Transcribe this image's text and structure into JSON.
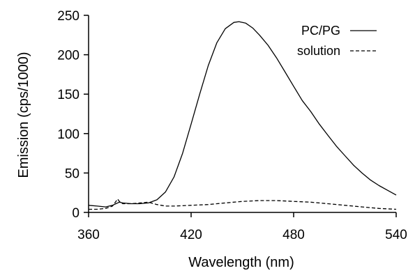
{
  "chart_data": {
    "type": "line",
    "title": "",
    "xlabel": "Wavelength (nm)",
    "ylabel": "Emission (cps/1000)",
    "xlim": [
      360,
      540
    ],
    "ylim": [
      0,
      250
    ],
    "x_ticks": [
      360,
      420,
      480,
      540
    ],
    "y_ticks": [
      0,
      50,
      100,
      150,
      200,
      250
    ],
    "grid": false,
    "legend": "top-right",
    "series": [
      {
        "name": "PC/PG",
        "style": "solid",
        "color": "#000000",
        "points": [
          [
            360,
            9
          ],
          [
            365,
            8
          ],
          [
            370,
            7
          ],
          [
            374,
            9
          ],
          [
            376,
            11
          ],
          [
            378,
            13
          ],
          [
            380,
            12
          ],
          [
            385,
            11
          ],
          [
            390,
            11
          ],
          [
            395,
            12
          ],
          [
            400,
            16
          ],
          [
            405,
            26
          ],
          [
            410,
            45
          ],
          [
            415,
            75
          ],
          [
            420,
            112
          ],
          [
            425,
            150
          ],
          [
            430,
            186
          ],
          [
            435,
            215
          ],
          [
            440,
            233
          ],
          [
            445,
            241
          ],
          [
            448,
            242
          ],
          [
            452,
            240
          ],
          [
            456,
            234
          ],
          [
            460,
            225
          ],
          [
            465,
            212
          ],
          [
            470,
            196
          ],
          [
            475,
            178
          ],
          [
            480,
            160
          ],
          [
            485,
            142
          ],
          [
            490,
            128
          ],
          [
            495,
            112
          ],
          [
            500,
            98
          ],
          [
            505,
            84
          ],
          [
            510,
            72
          ],
          [
            515,
            60
          ],
          [
            520,
            50
          ],
          [
            525,
            41
          ],
          [
            530,
            34
          ],
          [
            535,
            28
          ],
          [
            540,
            22
          ]
        ]
      },
      {
        "name": "solution",
        "style": "dashed",
        "color": "#000000",
        "points": [
          [
            360,
            4
          ],
          [
            365,
            4
          ],
          [
            370,
            5
          ],
          [
            374,
            8
          ],
          [
            376,
            14
          ],
          [
            377,
            17
          ],
          [
            378,
            14
          ],
          [
            380,
            11
          ],
          [
            385,
            11
          ],
          [
            390,
            12
          ],
          [
            395,
            13
          ],
          [
            400,
            10
          ],
          [
            405,
            8
          ],
          [
            410,
            8
          ],
          [
            420,
            9
          ],
          [
            430,
            10
          ],
          [
            440,
            12
          ],
          [
            450,
            14
          ],
          [
            460,
            15
          ],
          [
            470,
            15
          ],
          [
            480,
            14
          ],
          [
            490,
            13
          ],
          [
            500,
            11
          ],
          [
            510,
            9
          ],
          [
            520,
            7
          ],
          [
            530,
            5
          ],
          [
            540,
            4
          ]
        ]
      }
    ]
  }
}
